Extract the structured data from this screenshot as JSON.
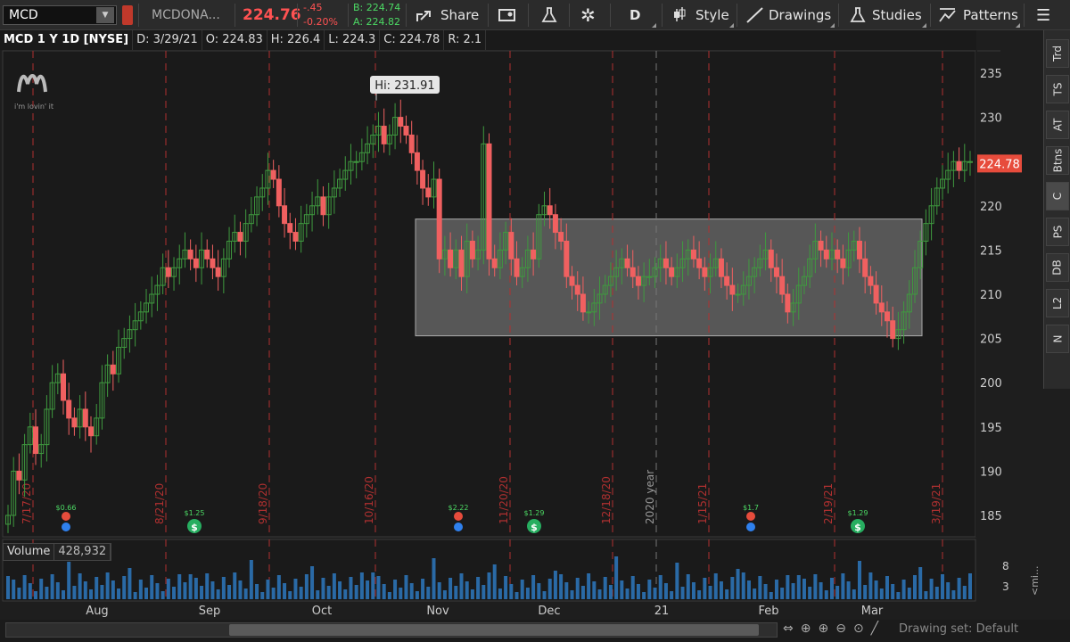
{
  "toolbar": {
    "symbol": "MCD",
    "company": "MCDONA...",
    "last": "224.76",
    "change": "-.45",
    "change_pct": "-0.20%",
    "bid": "B: 224.74",
    "ask": "A: 224.82",
    "share": "Share",
    "period": "D",
    "style": "Style",
    "drawings": "Drawings",
    "studies": "Studies",
    "patterns": "Patterns"
  },
  "header": {
    "title": "MCD 1 Y 1D [NYSE]",
    "date": "D: 3/29/21",
    "open": "O: 224.83",
    "high": "H: 226.4",
    "low": "L: 224.3",
    "close": "C: 224.78",
    "range": "R: 2.1"
  },
  "chart": {
    "logo_text": "i'm lovin' it",
    "hi_label": "Hi: 231.91",
    "hi_value": 231.91,
    "last_price_label": "224.78",
    "ylim": [
      182,
      238
    ],
    "y_ticks": [
      "235",
      "230",
      "225",
      "220",
      "215",
      "210",
      "205",
      "200",
      "195",
      "190",
      "185"
    ],
    "x_months": [
      "Aug",
      "Sep",
      "Oct",
      "Nov",
      "Dec",
      "21",
      "Feb",
      "Mar"
    ],
    "vlines": [
      "7/17/20",
      "8/21/20",
      "9/18/20",
      "10/16/20",
      "11/20/20",
      "12/18/20",
      "2020 year",
      "1/15/21",
      "2/19/21",
      "3/19/21"
    ],
    "dividends": [
      "$0.66",
      "$1.25",
      "$2.22",
      "$1.29",
      "$1.7",
      "$1.29"
    ],
    "range_box": {
      "top": 218.5,
      "bottom": 205.3
    },
    "colors": {
      "up": "#3f9a3f",
      "down": "#f06060",
      "volume": "#2a6aa6",
      "vline": "#b03030",
      "box": "#8a8a8a"
    }
  },
  "volume": {
    "label": "Volume",
    "value": "428,932",
    "ticks": [
      "8",
      "3"
    ],
    "axis_label": "<mi..."
  },
  "sidebar": [
    "Trd",
    "TS",
    "AT",
    "Btns",
    "C",
    "PS",
    "DB",
    "L2",
    "N"
  ],
  "bottom": {
    "drawing_set": "Drawing set: Default"
  }
}
